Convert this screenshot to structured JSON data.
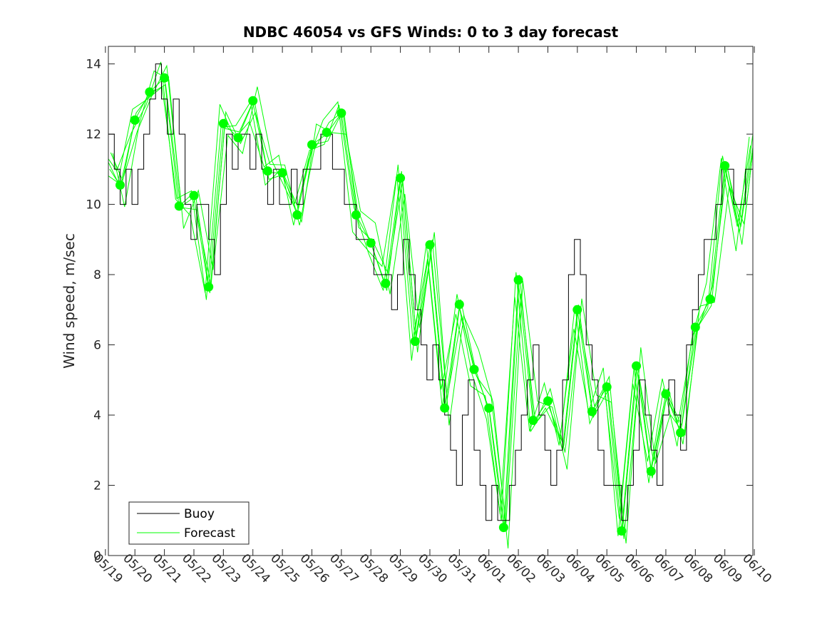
{
  "chart_data": {
    "type": "line",
    "title": "NDBC 46054 vs GFS Winds: 0 to 3 day forecast",
    "ylabel": "Wind speed, m/sec",
    "xlabel": "",
    "ylim": [
      0,
      14.5
    ],
    "yticks": [
      0,
      2,
      4,
      6,
      8,
      10,
      12,
      14
    ],
    "xlim": [
      -0.9,
      20.95
    ],
    "xticks": [
      "05/19",
      "05/20",
      "05/21",
      "05/22",
      "05/23",
      "05/24",
      "05/25",
      "05/26",
      "05/27",
      "05/28",
      "05/29",
      "05/30",
      "05/31",
      "06/01",
      "06/02",
      "06/03",
      "06/04",
      "06/05",
      "06/06",
      "06/07",
      "06/08",
      "06/09",
      "06/10"
    ],
    "legend": {
      "position": "bottom-left",
      "entries": [
        "Buoy",
        "Forecast"
      ]
    },
    "colors": {
      "buoy": "#000000",
      "forecast": "#00ff00",
      "axes": "#262626"
    },
    "series": [
      {
        "name": "Buoy",
        "x_unit": "days since 05/20",
        "x": [
          -0.9,
          -0.7,
          -0.5,
          -0.3,
          -0.1,
          0.1,
          0.3,
          0.5,
          0.7,
          0.9,
          1.1,
          1.3,
          1.5,
          1.7,
          1.9,
          2.1,
          2.3,
          2.5,
          2.7,
          2.9,
          3.1,
          3.3,
          3.5,
          3.7,
          3.9,
          4.1,
          4.3,
          4.5,
          4.7,
          4.9,
          5.1,
          5.3,
          5.5,
          5.7,
          5.9,
          6.1,
          6.3,
          6.5,
          6.7,
          6.9,
          7.1,
          7.3,
          7.5,
          7.7,
          7.9,
          8.1,
          8.3,
          8.5,
          8.7,
          8.9,
          9.1,
          9.3,
          9.5,
          9.7,
          9.9,
          10.1,
          10.3,
          10.5,
          10.7,
          10.9,
          11.1,
          11.3,
          11.5,
          11.7,
          11.9,
          12.1,
          12.3,
          12.5,
          12.7,
          12.9,
          13.1,
          13.3,
          13.5,
          13.7,
          13.9,
          14.1,
          14.3,
          14.5,
          14.7,
          14.9,
          15.1,
          15.3,
          15.5,
          15.7,
          15.9,
          16.1,
          16.3,
          16.5,
          16.7,
          16.9,
          17.1,
          17.3,
          17.5,
          17.7,
          17.9,
          18.1,
          18.3,
          18.5,
          18.7,
          18.9,
          19.1,
          19.3,
          19.5,
          19.7,
          19.9,
          20.1,
          20.3,
          20.5,
          20.7,
          20.95
        ],
        "values": [
          12,
          11,
          10,
          11,
          10,
          11,
          12,
          13,
          14,
          13,
          12,
          13,
          12,
          10,
          9,
          10,
          10,
          9,
          8,
          10,
          12,
          11,
          12,
          12,
          11,
          12,
          11,
          10,
          11,
          10,
          10,
          11,
          10,
          11,
          11,
          11,
          12,
          12,
          11,
          11,
          10,
          10,
          9,
          9,
          9,
          8,
          8,
          8,
          7,
          8,
          9,
          8,
          7,
          6,
          5,
          6,
          5,
          4,
          3,
          2,
          4,
          5,
          3,
          2,
          1,
          2,
          1,
          1,
          2,
          3,
          4,
          5,
          6,
          4,
          3,
          2,
          3,
          5,
          8,
          9,
          8,
          6,
          5,
          3,
          2,
          2,
          2,
          1,
          2,
          3,
          5,
          4,
          3,
          2,
          4,
          5,
          4,
          3,
          6,
          7,
          8,
          9,
          9,
          10,
          11,
          11,
          10,
          10,
          11,
          12
        ]
      },
      {
        "name": "Forecast",
        "x_unit": "days since 05/20",
        "x": [
          -0.9,
          -0.5,
          0,
          0.5,
          1,
          1.5,
          2,
          2.5,
          3,
          3.5,
          4,
          4.5,
          5,
          5.5,
          6,
          6.5,
          7,
          7.5,
          8,
          8.5,
          9,
          9.5,
          10,
          10.5,
          11,
          11.5,
          12,
          12.5,
          13,
          13.5,
          14,
          14.5,
          15,
          15.5,
          16,
          16.5,
          17,
          17.5,
          18,
          18.5,
          19,
          19.5,
          20,
          20.5,
          20.95
        ],
        "values": [
          11.2,
          10.5,
          12.4,
          13.2,
          13.6,
          9.9,
          10.2,
          7.6,
          12.3,
          11.9,
          12.9,
          10.9,
          10.9,
          9.7,
          11.7,
          12.0,
          12.6,
          9.7,
          8.9,
          7.7,
          10.8,
          6.1,
          8.8,
          4.2,
          7.1,
          5.3,
          4.2,
          0.8,
          7.8,
          3.8,
          4.4,
          3.0,
          7.0,
          4.1,
          4.8,
          0.7,
          5.4,
          2.4,
          4.6,
          3.5,
          6.5,
          7.3,
          11.1,
          9.2,
          12.0
        ]
      }
    ],
    "markers": {
      "series": "Forecast",
      "x": [
        -0.5,
        0,
        0.5,
        1,
        1.5,
        2,
        2.5,
        3,
        3.5,
        4,
        4.5,
        5,
        5.5,
        6,
        6.5,
        7,
        7.5,
        8,
        8.5,
        9,
        9.5,
        10,
        10.5,
        11,
        11.5,
        12,
        12.5,
        13,
        13.5,
        14,
        15,
        15.5,
        16,
        16.5,
        17,
        17.5,
        18,
        18.5,
        19,
        19.5,
        20
      ],
      "values": [
        10.55,
        12.4,
        13.2,
        13.6,
        9.95,
        10.25,
        7.65,
        12.3,
        11.9,
        12.95,
        10.95,
        10.9,
        9.7,
        11.7,
        12.05,
        12.6,
        9.7,
        8.9,
        7.75,
        10.75,
        6.1,
        8.85,
        4.2,
        7.15,
        5.3,
        4.2,
        0.8,
        7.85,
        3.85,
        4.4,
        7.0,
        4.1,
        4.8,
        0.7,
        5.4,
        2.4,
        4.6,
        3.5,
        6.5,
        7.3,
        11.1
      ]
    }
  }
}
